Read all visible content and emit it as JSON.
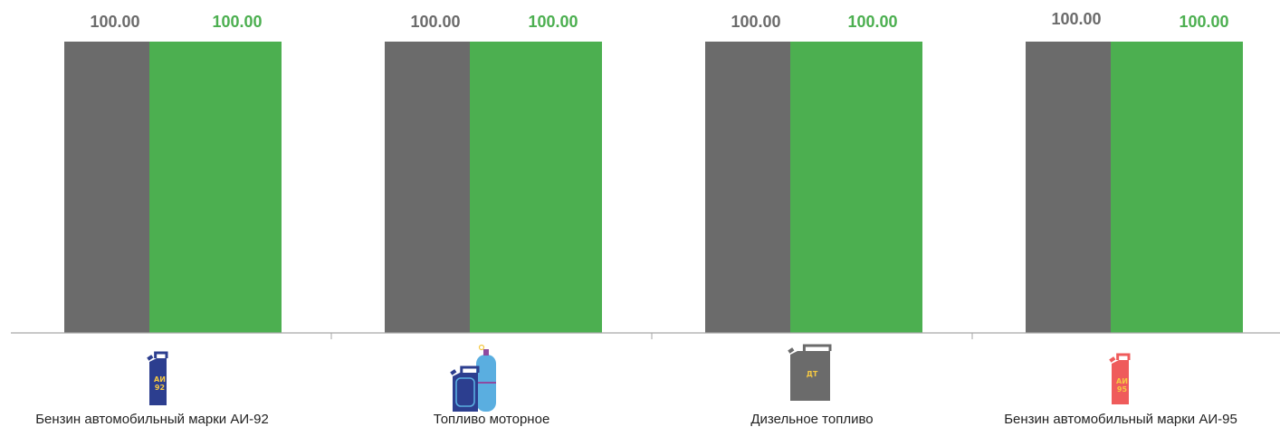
{
  "chart_data": {
    "type": "bar",
    "categories": [
      "Бензин автомобильный марки АИ-92",
      "Топливо моторное",
      "Дизельное топливо",
      "Бензин автомобильный марки АИ-95"
    ],
    "series": [
      {
        "color": "#6b6b6b",
        "values": [
          100.0,
          100.0,
          100.0,
          100.0
        ],
        "labels": [
          "100.00",
          "100.00",
          "100.00",
          "100.00"
        ]
      },
      {
        "color": "#4caf50",
        "values": [
          100.0,
          100.0,
          100.0,
          100.0
        ],
        "labels": [
          "100.00",
          "100.00",
          "100.00",
          "100.00"
        ]
      }
    ],
    "ylim": [
      0,
      100
    ],
    "grid": false,
    "legend": "none"
  },
  "icons": [
    {
      "name": "ai92-canister-icon",
      "text": [
        "АИ",
        "92"
      ],
      "body_color": "#2c3e8f",
      "text_color": "#f5c842"
    },
    {
      "name": "gas-cylinder-canister-icon",
      "text": [],
      "body_color": "#2c3e8f",
      "text_color": "#5aaee0"
    },
    {
      "name": "diesel-canister-icon",
      "text": [
        "ДТ"
      ],
      "body_color": "#6b6b6b",
      "text_color": "#f5c842"
    },
    {
      "name": "ai95-canister-icon",
      "text": [
        "АИ",
        "95"
      ],
      "body_color": "#ef5b5b",
      "text_color": "#f5c842"
    }
  ]
}
